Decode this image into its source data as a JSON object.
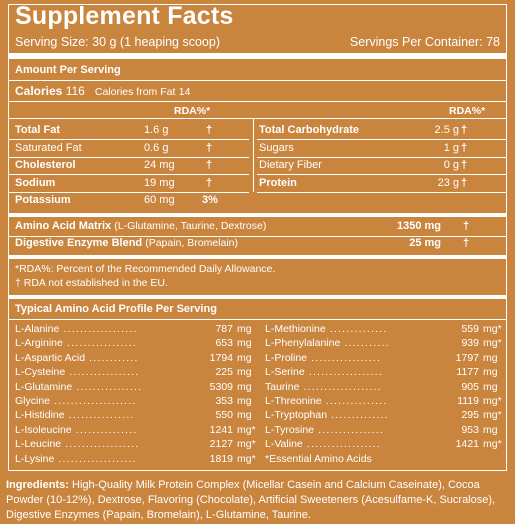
{
  "header": {
    "title": "Supplement Facts",
    "serving_size": "Serving Size: 30 g (1 heaping scoop)",
    "servings_per_container": "Servings Per Container: 78"
  },
  "amount_per_serving": "Amount Per Serving",
  "calories": {
    "label": "Calories",
    "value": "116",
    "fat_label": "Calories from Fat",
    "fat_value": "14"
  },
  "rda_header": "RDA%*",
  "left_rows": [
    {
      "name": "Total Fat",
      "amount": "1.6 g",
      "rda": "†"
    },
    {
      "name": "Saturated Fat",
      "amount": "0.6 g",
      "rda": "†"
    },
    {
      "name": "Cholesterol",
      "amount": "24 mg",
      "rda": "†"
    },
    {
      "name": "Sodium",
      "amount": "19 mg",
      "rda": "†"
    },
    {
      "name": "Potassium",
      "amount": "60 mg",
      "rda": "3%"
    }
  ],
  "right_rows": [
    {
      "name": "Total Carbohydrate",
      "amount": "2.5 g",
      "rda": "†"
    },
    {
      "name": "Sugars",
      "amount": "1 g",
      "rda": "†"
    },
    {
      "name": "Dietary Fiber",
      "amount": "0 g",
      "rda": "†"
    },
    {
      "name": "Protein",
      "amount": "23 g",
      "rda": "†"
    }
  ],
  "blends": [
    {
      "name": "Amino Acid Matrix",
      "detail": "(L-Glutamine, Taurine, Dextrose)",
      "amount": "1350 mg",
      "rda": "†"
    },
    {
      "name": "Digestive Enzyme Blend",
      "detail": "(Papain, Bromelain)",
      "amount": "25 mg",
      "rda": "†"
    }
  ],
  "footnotes": [
    "*RDA%: Percent of the Recommended Daily Allowance.",
    "† RDA not established in the EU."
  ],
  "profile_title": "Typical Amino Acid Profile Per Serving",
  "profile_left": [
    {
      "name": "L-Alanine",
      "value": "787",
      "unit": "mg"
    },
    {
      "name": "L-Arginine",
      "value": "653",
      "unit": "mg"
    },
    {
      "name": "L-Aspartic Acid",
      "value": "1794",
      "unit": "mg"
    },
    {
      "name": "L-Cysteine",
      "value": "225",
      "unit": "mg"
    },
    {
      "name": "L-Glutamine",
      "value": "5309",
      "unit": "mg"
    },
    {
      "name": "Glycine",
      "value": "353",
      "unit": "mg"
    },
    {
      "name": "L-Histidine",
      "value": "550",
      "unit": "mg"
    },
    {
      "name": "L-Isoleucine",
      "value": "1241",
      "unit": "mg*"
    },
    {
      "name": "L-Leucine",
      "value": "2127",
      "unit": "mg*"
    },
    {
      "name": "L-Lysine",
      "value": "1819",
      "unit": "mg*"
    }
  ],
  "profile_right": [
    {
      "name": "L-Methionine",
      "value": "559",
      "unit": "mg*"
    },
    {
      "name": "L-Phenylalanine",
      "value": "939",
      "unit": "mg*"
    },
    {
      "name": "L-Proline",
      "value": "1797",
      "unit": "mg"
    },
    {
      "name": "L-Serine",
      "value": "1177",
      "unit": "mg"
    },
    {
      "name": "Taurine",
      "value": "905",
      "unit": "mg"
    },
    {
      "name": "L-Threonine",
      "value": "1119",
      "unit": "mg*"
    },
    {
      "name": "L-Tryptophan",
      "value": "295",
      "unit": "mg*"
    },
    {
      "name": "L-Tyrosine",
      "value": "953",
      "unit": "mg"
    },
    {
      "name": "L-Valine",
      "value": "1421",
      "unit": "mg*"
    }
  ],
  "essential_note": "*Essential Amino Acids",
  "ingredients": {
    "label": "Ingredients:",
    "text": "High-Quality Milk Protein Complex (Micellar Casein and Calcium Caseinate), Cocoa Powder (10-12%), Dextrose, Flavoring (Chocolate), Artificial Sweeteners (Acesulfame-K, Sucralose), Digestive Enzymes (Papain, Bromelain), L-Glutamine, Taurine."
  },
  "colors": {
    "background": "#c9843e",
    "text": "#ffffff"
  }
}
